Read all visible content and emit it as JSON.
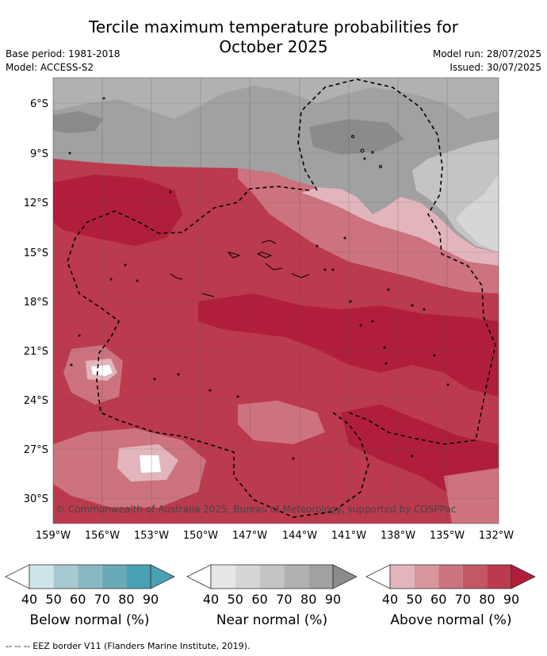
{
  "header": {
    "title_line1": "Tercile maximum temperature probabilities for",
    "title_line2": "October 2025",
    "base_period": "Base period: 1981-2018",
    "model": "Model: ACCESS-S2",
    "model_run": "Model run: 28/07/2025",
    "issued": "Issued: 30/07/2025"
  },
  "map": {
    "lat_labels": [
      "6°S",
      "9°S",
      "12°S",
      "15°S",
      "18°S",
      "21°S",
      "24°S",
      "27°S",
      "30°S"
    ],
    "lon_labels": [
      "159°W",
      "156°W",
      "153°W",
      "150°W",
      "147°W",
      "144°W",
      "141°W",
      "138°W",
      "135°W",
      "132°W"
    ],
    "copyright": "© Commonwealth of Australia 2025, Bureau of Meteorology, supported by COSPPac",
    "colors": {
      "below": [
        "#cfe4e9",
        "#a7c9d0",
        "#88b8c3",
        "#6aaab8",
        "#48a0b3"
      ],
      "near": [
        "#e7e7e7",
        "#d6d6d6",
        "#c4c4c4",
        "#b1b1b1",
        "#a1a1a1",
        "#8b8b8b"
      ],
      "above": [
        "#e2b5bc",
        "#d7959e",
        "#cc737f",
        "#c25865",
        "#bb3a4d",
        "#b01e3c"
      ]
    }
  },
  "legends": [
    {
      "label": "Below normal (%)",
      "ticks": [
        "40",
        "50",
        "60",
        "70",
        "80",
        "90"
      ]
    },
    {
      "label": "Near normal (%)",
      "ticks": [
        "40",
        "50",
        "60",
        "70",
        "80",
        "90"
      ]
    },
    {
      "label": "Above normal (%)",
      "ticks": [
        "40",
        "50",
        "60",
        "70",
        "80",
        "90"
      ]
    }
  ],
  "footnote": "--  --  -- EEZ border V11 (Flanders Marine Institute, 2019)."
}
